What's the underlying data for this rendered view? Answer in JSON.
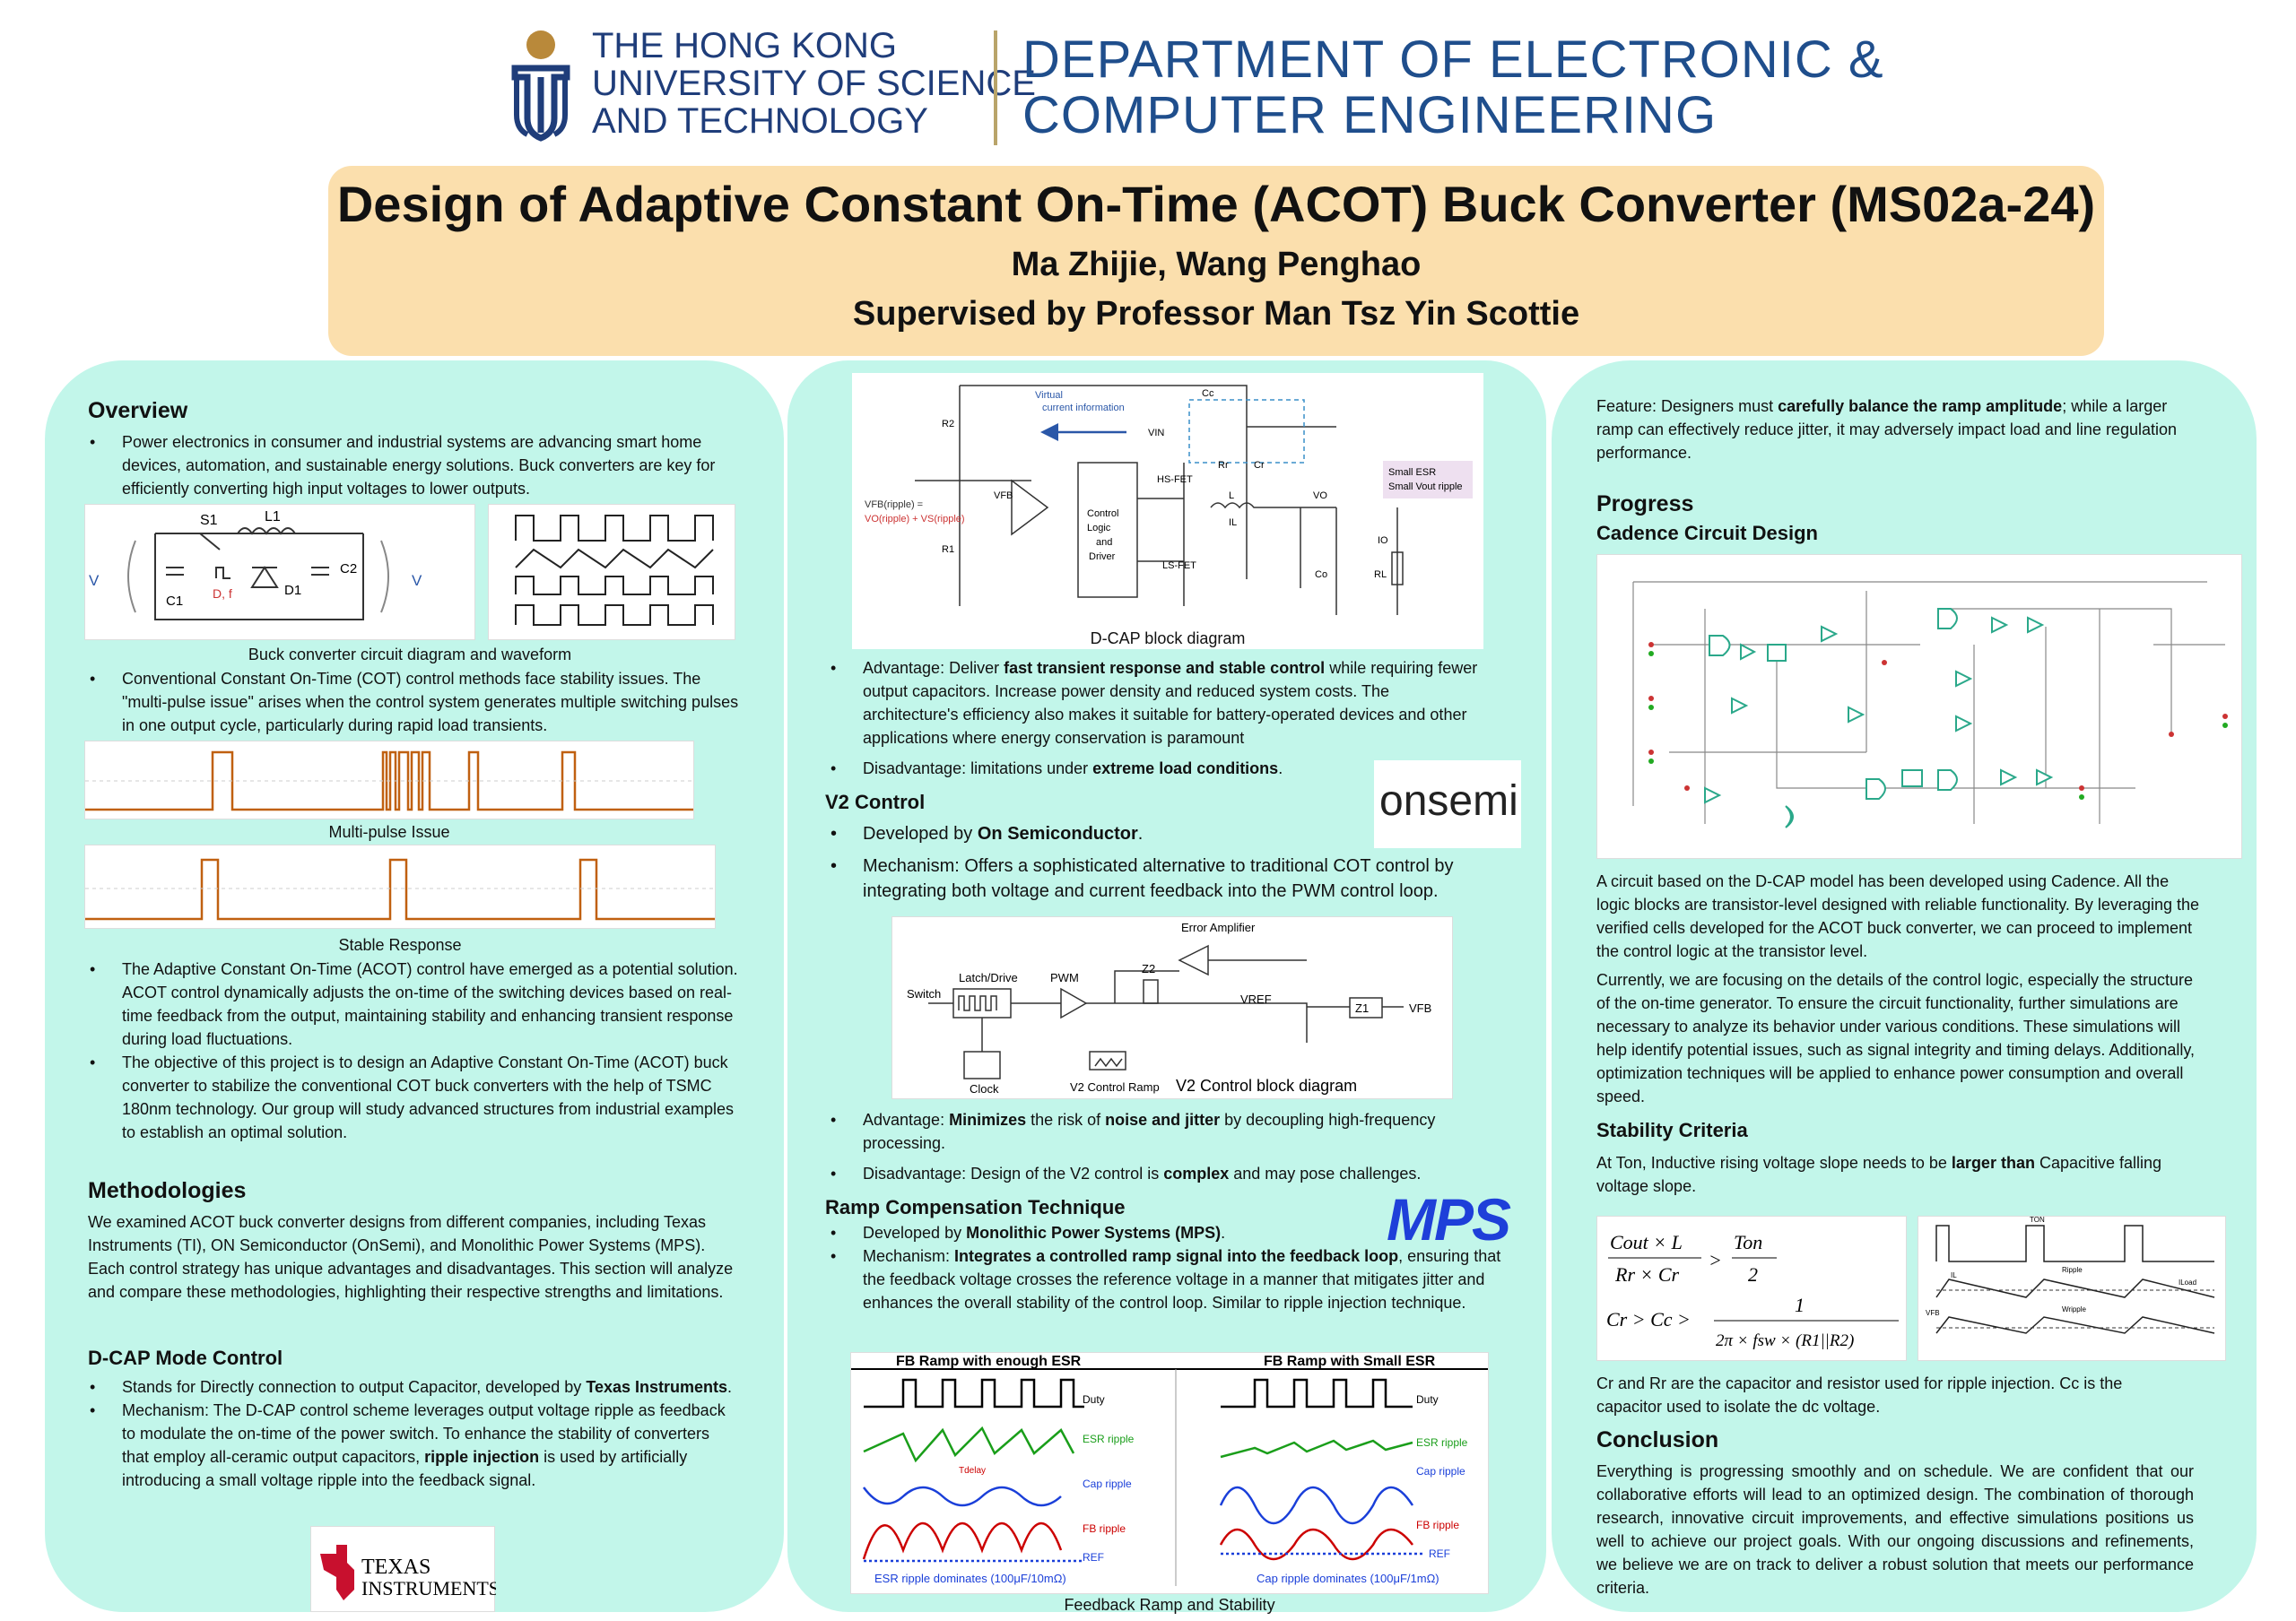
{
  "header": {
    "uni_line1": "THE HONG KONG",
    "uni_line2": "UNIVERSITY OF SCIENCE",
    "uni_line3": "AND TECHNOLOGY",
    "dept_line1": "DEPARTMENT OF ELECTRONIC &",
    "dept_line2": "COMPUTER ENGINEERING"
  },
  "title": {
    "main": "Design of Adaptive Constant On-Time (ACOT) Buck Converter (MS02a-24)",
    "authors": "Ma Zhijie, Wang Penghao",
    "supervisor": "Supervised by Professor Man Tsz Yin Scottie"
  },
  "overview": {
    "heading": "Overview",
    "b1": "Power electronics in consumer and industrial systems are advancing smart home devices, automation, and sustainable energy solutions. Buck converters are key for efficiently converting high input voltages to lower outputs.",
    "fig1_caption": "Buck converter circuit diagram and waveform",
    "b2": "Conventional Constant On-Time (COT) control methods face stability issues. The \"multi-pulse issue\" arises when the control system generates multiple switching pulses in one output cycle, particularly during rapid load transients.",
    "fig2_caption": "Multi-pulse Issue",
    "fig3_caption": "Stable Response",
    "b3": "The Adaptive Constant On-Time (ACOT) control have emerged as a potential solution. ACOT control dynamically adjusts the on-time of the switching devices based on real-time feedback from the output, maintaining stability and enhancing transient response during load fluctuations.",
    "b4": "The objective of this project is to design an Adaptive Constant On-Time (ACOT) buck converter to stabilize the conventional COT buck converters with the help of TSMC 180nm technology. Our group will study advanced structures from industrial examples to establish an optimal solution."
  },
  "circuit_labels": {
    "s1": "S1",
    "l1": "L1",
    "vin": "V",
    "vin_sub": "in",
    "c1": "C1",
    "d": "D, f",
    "d_sub": "sw",
    "d1": "D1",
    "c2": "C2",
    "vout": "V",
    "vout_sub": "out"
  },
  "methodologies": {
    "heading": "Methodologies",
    "text": "We examined ACOT buck converter designs from different companies, including Texas Instruments (TI), ON Semiconductor (OnSemi), and Monolithic Power Systems (MPS). Each control strategy has unique advantages and disadvantages. This section will analyze and compare these methodologies, highlighting their respective strengths and limitations."
  },
  "dcap": {
    "heading": "D-CAP Mode Control",
    "b1_pre": "Stands for Directly connection to output Capacitor, developed by ",
    "b1_bold": "Texas Instruments",
    "b1_post": ".",
    "b2_pre": "Mechanism: The D-CAP control scheme leverages output voltage ripple as feedback to modulate the on-time of the power switch. To enhance the stability of converters that employ all-ceramic output capacitors, ",
    "b2_bold": "ripple injection",
    "b2_post": " is used by artificially introducing a small voltage ripple into the feedback signal.",
    "logo_l1": "TEXAS",
    "logo_l2": "INSTRUMENTS"
  },
  "dcap_diag": {
    "caption": "D-CAP block diagram",
    "virtual": "Virtual",
    "current_info": "current information",
    "r2": "R2",
    "r1": "R1",
    "cc": "Cc",
    "rr": "Rr",
    "cr": "Cr",
    "vin": "VIN",
    "hs": "HS-FET",
    "ls": "LS-FET",
    "ctrl1": "Control",
    "ctrl2": "Logic",
    "ctrl3": "and",
    "ctrl4": "Driver",
    "l": "L",
    "il": "IL",
    "vo": "VO",
    "io": "IO",
    "co": "Co",
    "rl": "RL",
    "vfb": "VFB",
    "esr1": "Small ESR",
    "esr2": "Small Vout ripple",
    "vfbr": "VFB(ripple) =",
    "vor": "VO(ripple) + VS(ripple)"
  },
  "col2": {
    "adv_pre": "Advantage: Deliver ",
    "adv_bold": "fast transient response and stable control",
    "adv_post": " while requiring fewer output capacitors. Increase power density and reduced system costs. The architecture's efficiency also makes it suitable for battery-operated devices and other applications where energy conservation is paramount",
    "dis_pre": "Disadvantage: limitations under ",
    "dis_bold": "extreme load conditions",
    "dis_post": ".",
    "onsemi": "onsemi"
  },
  "v2": {
    "heading": "V2 Control",
    "b1_pre": "Developed by ",
    "b1_bold": "On Semiconductor",
    "b1_post": ".",
    "b2": "Mechanism: Offers a sophisticated alternative to traditional COT control by integrating both voltage and current feedback into the PWM control loop.",
    "caption": "V2 Control  block diagram",
    "ea": "Error Amplifier",
    "latch": "Latch/Drive",
    "pwm": "PWM",
    "sw": "Switch",
    "z2": "Z2",
    "vref": "VREF",
    "z1": "Z1",
    "vfb": "VFB",
    "clock": "Clock",
    "ramp": "V2 Control Ramp",
    "adv_pre": "Advantage: ",
    "adv_bold1": "Minimizes",
    "adv_mid": " the risk of ",
    "adv_bold2": "noise and jitter",
    "adv_post": " by decoupling high-frequency processing.",
    "dis_pre": "Disadvantage: Design of the V2 control is ",
    "dis_bold": "complex",
    "dis_post": " and may pose challenges."
  },
  "ramp": {
    "heading": "Ramp Compensation Technique",
    "mps": "MPS",
    "b1_pre": "Developed by ",
    "b1_bold": "Monolithic Power Systems (MPS)",
    "b1_post": ".",
    "b2_pre": "Mechanism: ",
    "b2_bold": "Integrates a controlled ramp signal into the feedback loop",
    "b2_post": ", ensuring that the feedback voltage crosses the reference voltage in a manner that mitigates jitter and enhances the overall stability of the control loop. Similar to ripple injection technique.",
    "p1_title": "FB Ramp with enough ESR",
    "p2_title": "FB Ramp with Small ESR",
    "duty": "Duty",
    "esr": "ESR ripple",
    "cap": "Cap ripple",
    "fb": "FB ripple",
    "ref": "REF",
    "tdelay": "Tdelay",
    "p1_foot": "ESR ripple dominates (100μF/10mΩ)",
    "p2_foot": "Cap ripple dominates (100μF/1mΩ)",
    "caption": "Feedback Ramp and Stability"
  },
  "col3": {
    "feat_pre": "Feature: Designers must ",
    "feat_bold": "carefully balance the ramp amplitude",
    "feat_post": "; while a larger ramp can effectively reduce jitter, it may adversely impact load and line regulation performance.",
    "progress": "Progress",
    "cadence": "Cadence Circuit Design",
    "p1": "A circuit based on the D-CAP model has been developed using  Cadence. All the logic blocks are transistor-level designed with reliable functionality. By leveraging the verified cells developed for the ACOT buck converter, we can proceed to implement the control logic at the transistor level.",
    "p2": "Currently, we are focusing on the details of the control logic, especially the structure of the on-time generator. To ensure the circuit functionality, further simulations are necessary to analyze its behavior under various conditions. These simulations will help identify potential issues, such as signal integrity and timing delays. Additionally, optimization techniques will be applied to enhance power consumption and overall speed.",
    "stab": "Stability Criteria",
    "stab_pre": "At Ton, Inductive rising voltage slope needs to be ",
    "stab_bold": "larger than",
    "stab_post": " Capacitive falling voltage slope.",
    "eq1_num": "Cout × L",
    "eq1_den": "Rr × Cr",
    "eq1_gt": ">",
    "eq1_rnum": "Ton",
    "eq1_rden": "2",
    "eq2_lhs": "Cr > Cc >",
    "eq2_num": "1",
    "eq2_den": "2π × fsw × (R1||R2)",
    "ton": "TON",
    "ripple": "Ripple",
    "il": "IL",
    "iload": "ILoad",
    "vfb": "VFB",
    "wripple": "Wripple",
    "cr_text": "Cr and Rr are the capacitor and resistor used for ripple injection. Cc is the capacitor used to isolate the dc voltage.",
    "concl": "Conclusion",
    "concl_text": "Everything is progressing smoothly and on schedule. We are confident that our collaborative efforts will lead to an optimized design. The combination of thorough research, innovative circuit improvements, and effective simulations positions us well to achieve our project goals. With our ongoing discussions and refinements, we believe we are on track to deliver a robust solution that meets our performance criteria."
  },
  "colors": {
    "title_bg": "#fbdfad",
    "col_bg": "#c2f6ea",
    "hkust_blue": "#1f3d7a",
    "gold": "#b9a46a"
  }
}
